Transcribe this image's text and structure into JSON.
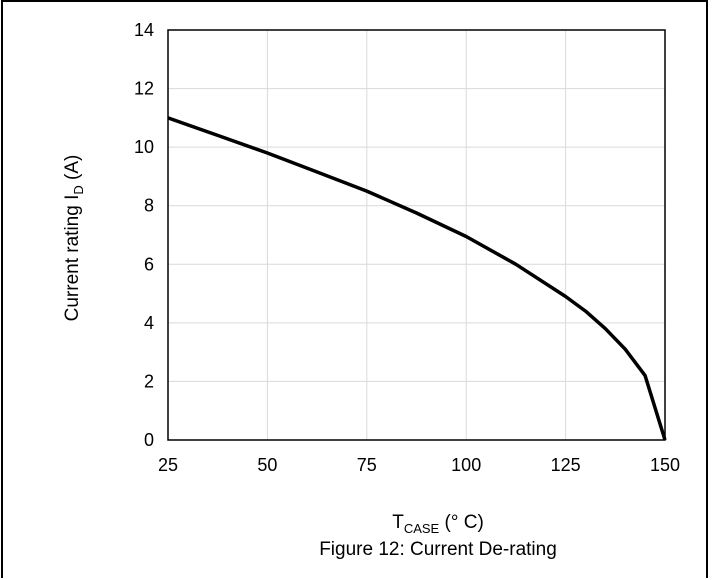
{
  "chart_data": {
    "type": "line",
    "xlabel": {
      "main": "T",
      "sub": "CASE",
      "rest": " (° C)"
    },
    "ylabel": {
      "main": "Current rating I",
      "sub": "D",
      "rest": " (A)"
    },
    "caption": "Figure 12: Current De-rating",
    "xlim": [
      25,
      150
    ],
    "ylim": [
      0,
      14
    ],
    "xticks": [
      25,
      50,
      75,
      100,
      125,
      150
    ],
    "yticks": [
      0,
      2,
      4,
      6,
      8,
      10,
      12,
      14
    ],
    "grid": true,
    "series": [
      {
        "x": [
          25,
          37.5,
          50,
          62.5,
          75,
          87.5,
          100,
          112.5,
          125,
          130,
          135,
          140,
          145,
          150
        ],
        "y": [
          11.0,
          10.4,
          9.8,
          9.15,
          8.5,
          7.75,
          6.95,
          6.0,
          4.9,
          4.4,
          3.8,
          3.1,
          2.2,
          0
        ]
      }
    ]
  }
}
